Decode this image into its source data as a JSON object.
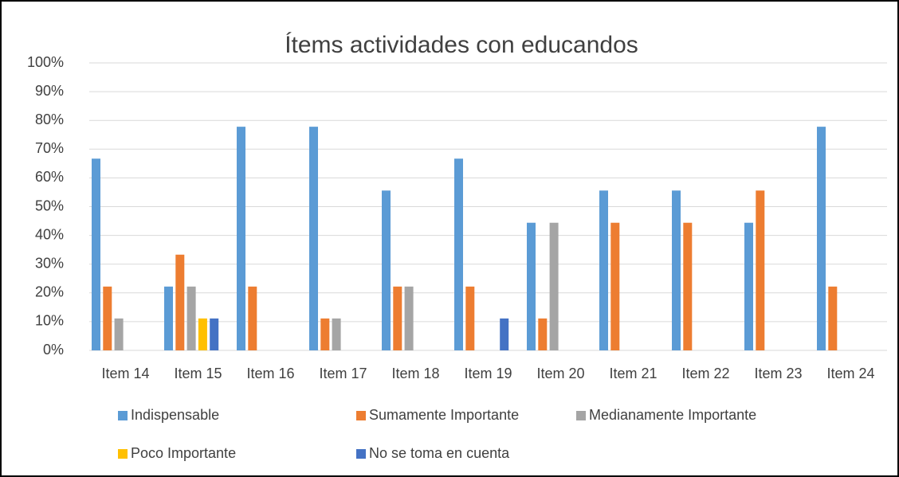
{
  "chart_data": {
    "type": "bar",
    "title": "Ítems actividades con educandos",
    "categories": [
      "Item 14",
      "Item 15",
      "Item 16",
      "Item 17",
      "Item 18",
      "Item 19",
      "Item 20",
      "Item 21",
      "Item 22",
      "Item 23",
      "Item 24"
    ],
    "series": [
      {
        "name": "Indispensable",
        "color": "#5b9bd5",
        "values": [
          66.7,
          22.2,
          77.8,
          77.8,
          55.6,
          66.7,
          44.4,
          55.6,
          55.6,
          44.4,
          77.8
        ]
      },
      {
        "name": "Sumamente Importante",
        "color": "#ed7d31",
        "values": [
          22.2,
          33.3,
          22.2,
          11.1,
          22.2,
          22.2,
          11.1,
          44.4,
          44.4,
          55.6,
          22.2
        ]
      },
      {
        "name": "Medianamente Importante",
        "color": "#a5a5a5",
        "values": [
          11.1,
          22.2,
          0,
          11.1,
          22.2,
          0,
          44.4,
          0,
          0,
          0,
          0
        ]
      },
      {
        "name": "Poco Importante",
        "color": "#ffc000",
        "values": [
          0,
          11.1,
          0,
          0,
          0,
          0,
          0,
          0,
          0,
          0,
          0
        ]
      },
      {
        "name": "No se toma en cuenta",
        "color": "#4472c4",
        "values": [
          0,
          11.1,
          0,
          0,
          0,
          11.1,
          0,
          0,
          0,
          0,
          0
        ]
      }
    ],
    "ylim": [
      0,
      100
    ],
    "yticks": [
      {
        "value": 0,
        "label": "0%"
      },
      {
        "value": 10,
        "label": "10%"
      },
      {
        "value": 20,
        "label": "20%"
      },
      {
        "value": 30,
        "label": "30%"
      },
      {
        "value": 40,
        "label": "40%"
      },
      {
        "value": 50,
        "label": "50%"
      },
      {
        "value": 60,
        "label": "60%"
      },
      {
        "value": 70,
        "label": "70%"
      },
      {
        "value": 80,
        "label": "80%"
      },
      {
        "value": 90,
        "label": "90%"
      },
      {
        "value": 100,
        "label": "100%"
      }
    ],
    "grid": true,
    "legend": "bottom"
  }
}
